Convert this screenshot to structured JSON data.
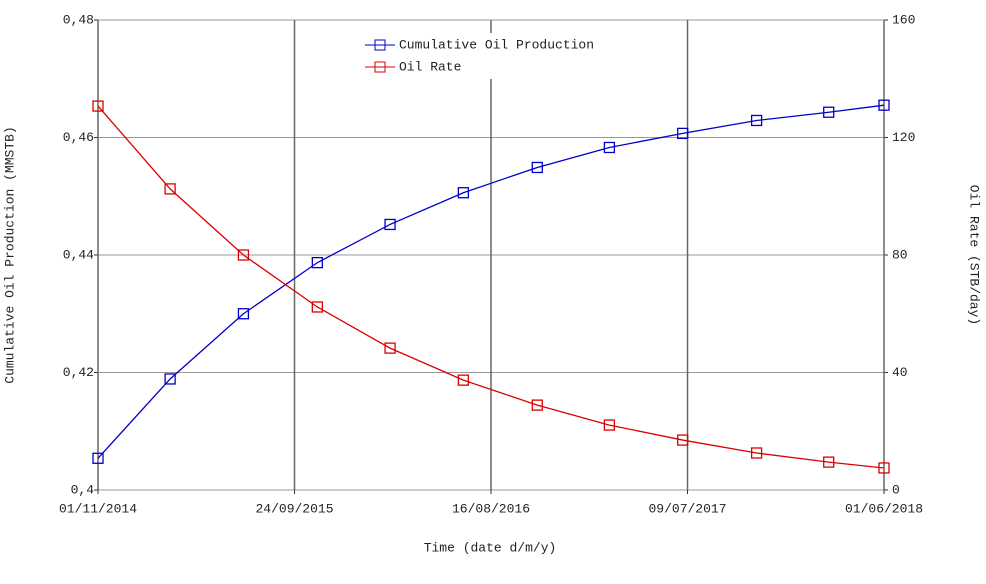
{
  "chart_data": {
    "type": "line",
    "x_label": "Time (date d/m/y)",
    "y_label": "Cumulative Oil Production (MMSTB)",
    "y2_label": "Oil Rate (STB/day)",
    "x": [
      "01/11/2014",
      "01/03/2015",
      "01/07/2015",
      "01/11/2015",
      "01/03/2016",
      "01/07/2016",
      "01/11/2016",
      "01/03/2017",
      "01/07/2017",
      "01/11/2017",
      "01/03/2018",
      "01/06/2018"
    ],
    "xlim": [
      "01/11/2014",
      "01/06/2018"
    ],
    "xticks": [
      "01/11/2014",
      "24/09/2015",
      "16/08/2016",
      "09/07/2017",
      "01/06/2018"
    ],
    "ylim": [
      0.4,
      0.48
    ],
    "yticks": [
      {
        "value": 0.4,
        "label": "0,4"
      },
      {
        "value": 0.42,
        "label": "0,42"
      },
      {
        "value": 0.44,
        "label": "0,44"
      },
      {
        "value": 0.46,
        "label": "0,46"
      },
      {
        "value": 0.48,
        "label": "0,48"
      }
    ],
    "y2lim": [
      0,
      160
    ],
    "y2ticks": [
      0,
      40,
      80,
      120,
      160
    ],
    "grid": true,
    "legend": "top",
    "series": [
      {
        "name": "Cumulative Oil Production",
        "color": "#0000cc",
        "values": [
          0.4054,
          0.4189,
          0.43,
          0.4387,
          0.4452,
          0.4506,
          0.4549,
          0.4583,
          0.4607,
          0.4629,
          0.4643,
          0.4655
        ]
      },
      {
        "name": "Oil Rate",
        "color": "#dd0000",
        "axis": "y2",
        "values": [
          130.7,
          102.5,
          80,
          62.3,
          48.3,
          37.4,
          28.9,
          22.1,
          17.0,
          12.6,
          9.5,
          7.5
        ]
      }
    ]
  }
}
